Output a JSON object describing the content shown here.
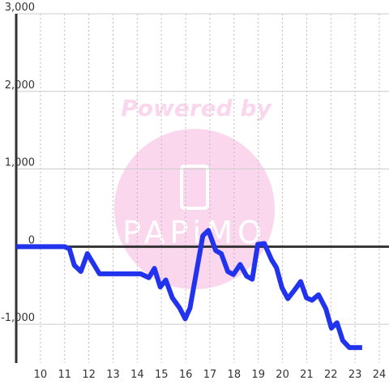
{
  "chart_data": {
    "type": "line",
    "watermark": "Powered by",
    "watermark_logo": "PAPiMO",
    "x": [
      9,
      11.0,
      11.2,
      11.4,
      11.67,
      11.94,
      12.44,
      14.14,
      14.48,
      14.71,
      14.95,
      15.18,
      15.45,
      15.75,
      15.98,
      16.18,
      16.71,
      16.94,
      17.24,
      17.47,
      17.74,
      17.97,
      18.25,
      18.52,
      18.75,
      18.98,
      19.25,
      19.55,
      19.75,
      19.98,
      20.22,
      20.52,
      20.75,
      20.99,
      21.22,
      21.49,
      21.79,
      22.02,
      22.25,
      22.49,
      22.76,
      23.29
    ],
    "series": [
      {
        "color": "#2233ee",
        "values": [
          0,
          0,
          -30,
          -240,
          -320,
          -90,
          -350,
          -350,
          -400,
          -280,
          -520,
          -430,
          -660,
          -790,
          -930,
          -790,
          140,
          210,
          -50,
          -90,
          -320,
          -360,
          -230,
          -380,
          -420,
          30,
          40,
          -170,
          -270,
          -530,
          -670,
          -550,
          -450,
          -660,
          -690,
          -620,
          -800,
          -1050,
          -980,
          -1210,
          -1300,
          -1300
        ]
      }
    ],
    "xlim": [
      9,
      24.4
    ],
    "ylim": [
      -1500,
      3000
    ],
    "xticks": [
      10,
      11,
      12,
      13,
      14,
      15,
      16,
      17,
      18,
      19,
      20,
      21,
      22,
      23,
      24
    ],
    "yticks": [
      {
        "value": -1000,
        "label": "-1,000"
      },
      0,
      {
        "value": 1000,
        "label": "1,000"
      },
      {
        "value": 2000,
        "label": "2,000"
      },
      {
        "value": 3000,
        "label": "3,000"
      }
    ],
    "grid": true
  }
}
